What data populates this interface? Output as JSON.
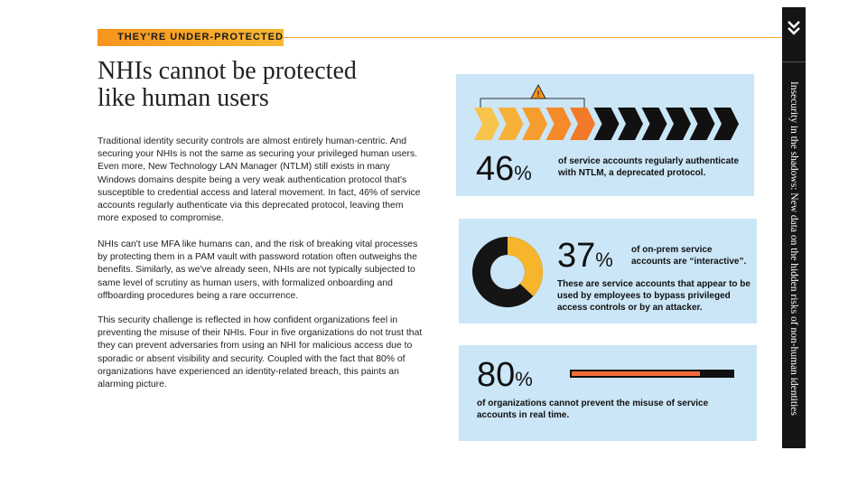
{
  "tag": "THEY'RE UNDER-PROTECTED",
  "title_lines": [
    "NHIs cannot be protected",
    "like human users"
  ],
  "paragraphs": [
    "Traditional identity security controls are almost entirely human-centric. And securing your NHIs is not the same as securing your privileged human users. Even more, New Technology LAN Manager (NTLM) still exists in many Windows domains despite being a very weak authentication protocol that's susceptible to credential access and lateral movement. In fact, 46% of service accounts regularly authenticate via this deprecated protocol, leaving them more exposed to compromise.",
    "NHIs can't use MFA like humans can, and the risk of breaking vital processes by protecting them in a PAM vault with password rotation often outweighs the benefits. Similarly, as we've already seen, NHIs are not typically subjected to same level of scrutiny as human users, with formalized onboarding and offboarding procedures being a rare occurrence.",
    "This security challenge is reflected in how confident organizations feel in preventing the misuse of their NHIs. Four in five organizations do not trust that they can prevent adversaries from using an NHI for malicious access due to sporadic or absent visibility and security. Coupled with the fact that 80% of organizations have experienced an identity-related breach, this paints an alarming picture."
  ],
  "stats": [
    {
      "number": "46",
      "unit": "%",
      "text": "of service accounts regularly authenticate with NTLM, a deprecated protocol.",
      "fraction": 0.46
    },
    {
      "number": "37",
      "unit": "%",
      "headline": "of on-prem service accounts are “interactive”.",
      "text": "These are service accounts that appear to be used by employees to bypass privileged access controls or by an attacker.",
      "fraction": 0.37
    },
    {
      "number": "80",
      "unit": "%",
      "text": "of organizations cannot prevent the misuse of service accounts in real time.",
      "fraction": 0.8
    }
  ],
  "sidebar_text": "Insecurity in the shadows: New data on the hidden risks of non-human identities",
  "colors": {
    "accent": "#f7941d",
    "card": "#cbe6f7",
    "dark": "#111111",
    "bar": "#f26b3a",
    "donut": "#f7b52c"
  },
  "icons": {
    "warning": "warning-icon",
    "sidebar": "chevron-down-icon"
  }
}
